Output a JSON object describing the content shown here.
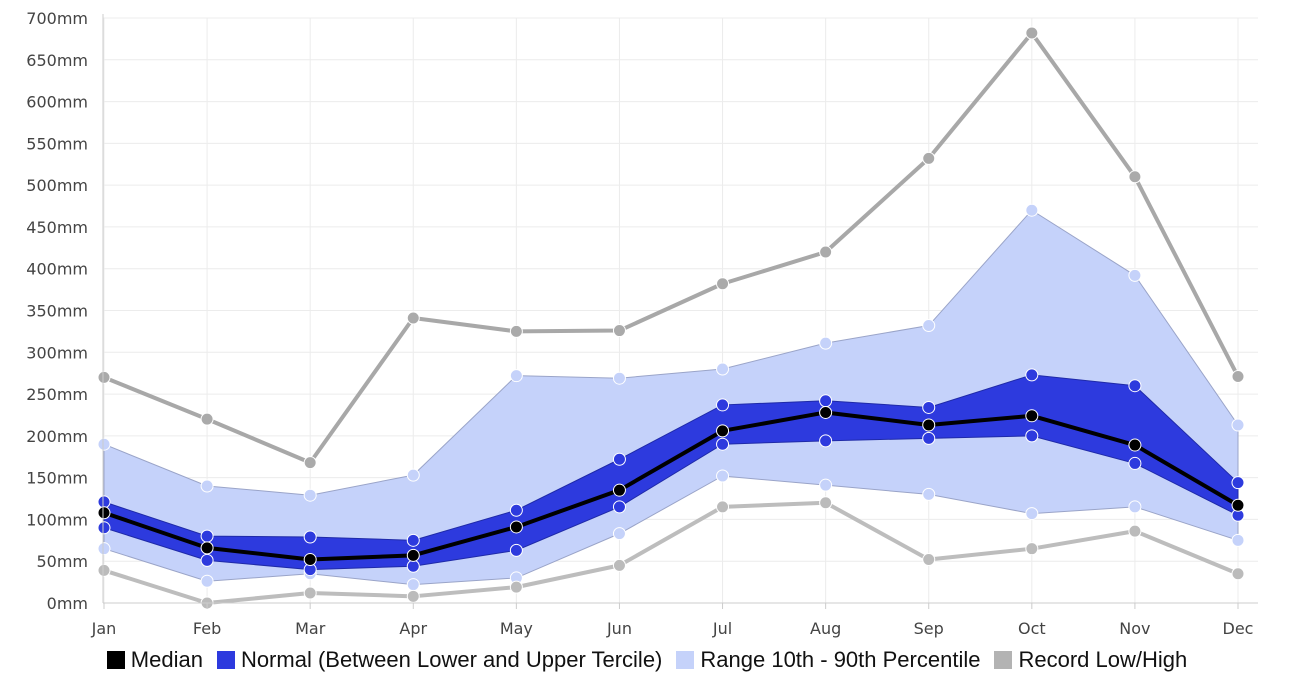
{
  "chart_data": {
    "type": "line",
    "categories": [
      "Jan",
      "Feb",
      "Mar",
      "Apr",
      "May",
      "Jun",
      "Jul",
      "Aug",
      "Sep",
      "Oct",
      "Nov",
      "Dec"
    ],
    "y_ticks": [
      "0mm",
      "50mm",
      "100mm",
      "150mm",
      "200mm",
      "250mm",
      "300mm",
      "350mm",
      "400mm",
      "450mm",
      "500mm",
      "550mm",
      "600mm",
      "650mm",
      "700mm"
    ],
    "ylim": [
      0,
      700
    ],
    "grid": true,
    "legend_position": "bottom",
    "series": [
      {
        "name": "Median",
        "color": "#000000",
        "values": [
          108,
          66,
          52,
          57,
          91,
          135,
          206,
          228,
          213,
          224,
          189,
          117
        ]
      },
      {
        "name": "Normal (Between Lower and Upper Tercile)",
        "color": "#2d3ade",
        "lower": [
          90,
          51,
          40,
          44,
          63,
          115,
          190,
          194,
          197,
          200,
          167,
          105
        ],
        "upper": [
          121,
          80,
          79,
          75,
          111,
          172,
          237,
          242,
          234,
          273,
          260,
          144
        ]
      },
      {
        "name": "Range 10th - 90th Percentile",
        "color": "#c5d2fa",
        "lower": [
          65,
          26,
          35,
          22,
          30,
          83,
          152,
          141,
          130,
          107,
          115,
          75
        ],
        "upper": [
          190,
          140,
          129,
          153,
          272,
          269,
          280,
          311,
          332,
          470,
          392,
          213
        ]
      },
      {
        "name": "Record Low/High",
        "color": "#b3b3b3",
        "low": [
          39,
          0,
          12,
          8,
          19,
          45,
          115,
          120,
          52,
          65,
          86,
          35
        ],
        "high": [
          270,
          220,
          168,
          341,
          325,
          326,
          382,
          420,
          532,
          682,
          510,
          271
        ]
      }
    ]
  }
}
